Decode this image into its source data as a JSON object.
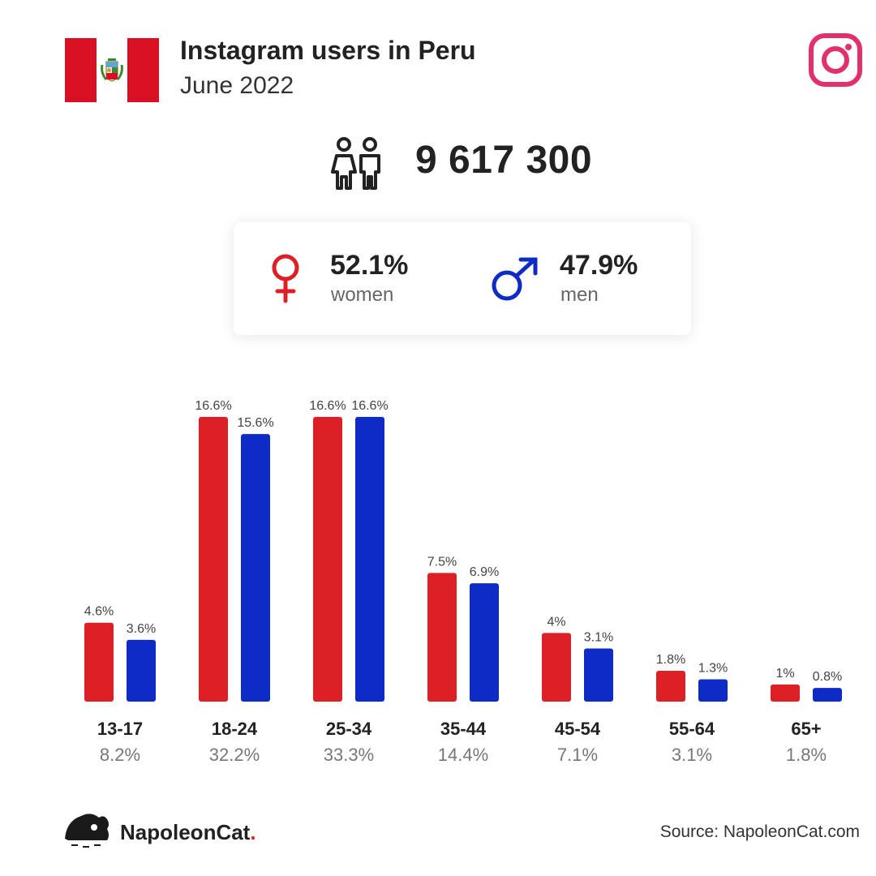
{
  "header": {
    "title": "Instagram users in Peru",
    "subtitle": "June 2022"
  },
  "total_users": "9 617 300",
  "gender": {
    "women_value": "52.1%",
    "women_label": "women",
    "men_value": "47.9%",
    "men_label": "men"
  },
  "colors": {
    "women": "#dd1f26",
    "men": "#0f2bc5",
    "instagram": "#e1306c",
    "flag_red": "#d91023"
  },
  "icons": {
    "flag": "peru-flag-icon",
    "instagram": "instagram-icon",
    "users": "users-icon",
    "female": "female-symbol-icon",
    "male": "male-symbol-icon",
    "brand_logo": "napoleoncat-logo-icon"
  },
  "chart_data": {
    "type": "bar",
    "categories": [
      "13-17",
      "18-24",
      "25-34",
      "35-44",
      "45-54",
      "55-64",
      "65+"
    ],
    "category_totals": [
      "8.2%",
      "32.2%",
      "33.3%",
      "14.4%",
      "7.1%",
      "3.1%",
      "1.8%"
    ],
    "series": [
      {
        "values": [
          4.6,
          16.6,
          16.6,
          7.5,
          4,
          1.8,
          1
        ],
        "labels": [
          "4.6%",
          "16.6%",
          "16.6%",
          "7.5%",
          "4%",
          "1.8%",
          "1%"
        ]
      },
      {
        "values": [
          3.6,
          15.6,
          16.6,
          6.9,
          3.1,
          1.3,
          0.8
        ],
        "labels": [
          "3.6%",
          "15.6%",
          "16.6%",
          "6.9%",
          "3.1%",
          "1.3%",
          "0.8%"
        ]
      }
    ],
    "ylim": [
      0,
      16.6
    ],
    "grid": false
  },
  "footer": {
    "brand_name": "NapoleonCat",
    "brand_dot": ".",
    "source": "Source: NapoleonCat.com"
  }
}
